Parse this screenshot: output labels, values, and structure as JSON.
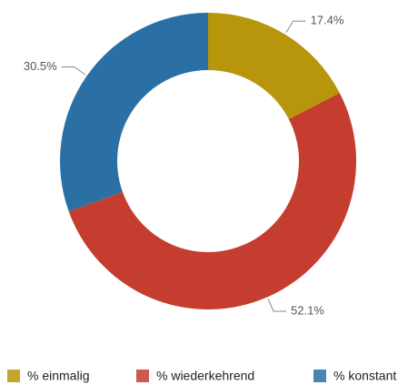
{
  "chart_data": {
    "type": "pie",
    "donut": true,
    "categories": [
      "% einmalig",
      "% wiederkehrend",
      "% konstant"
    ],
    "values": [
      17.4,
      52.1,
      30.5
    ],
    "value_labels": [
      "17.4%",
      "52.1%",
      "30.5%"
    ],
    "colors": [
      "#b8960c",
      "#c43d2f",
      "#2b70a5"
    ],
    "legend": "bottom"
  }
}
